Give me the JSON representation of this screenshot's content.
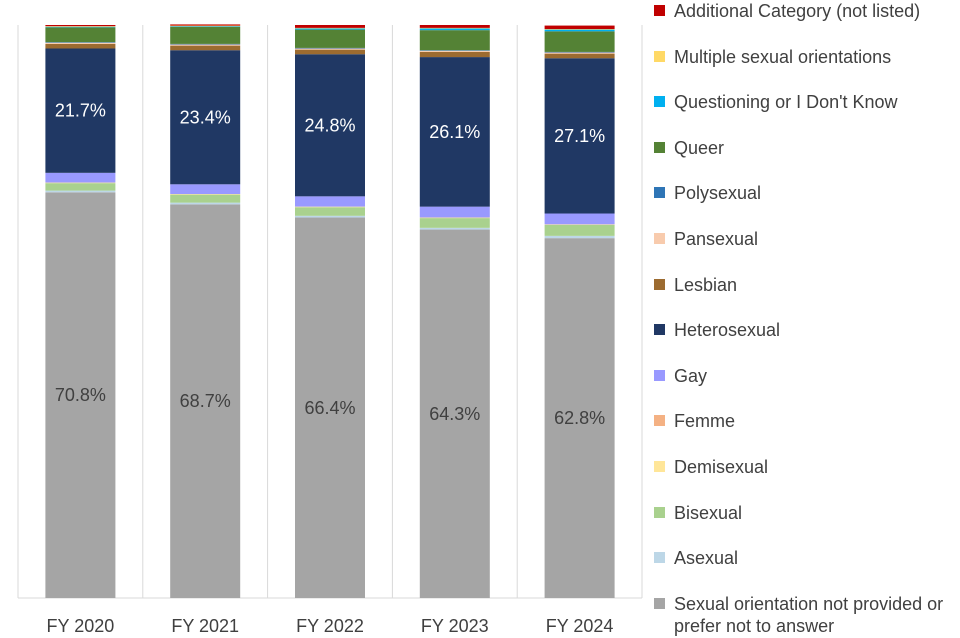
{
  "chart_data": {
    "type": "bar",
    "stacked": true,
    "title": "",
    "xlabel": "",
    "ylabel": "",
    "ylim": [
      0,
      100
    ],
    "categories": [
      "FY 2020",
      "FY 2021",
      "FY 2022",
      "FY 2023",
      "FY 2024"
    ],
    "series": [
      {
        "name": "Sexual orientation not provided or prefer not to answer",
        "color": "#a5a5a5",
        "values": [
          70.8,
          68.7,
          66.4,
          64.3,
          62.8
        ],
        "labels": [
          "70.8%",
          "68.7%",
          "66.4%",
          "64.3%",
          "62.8%"
        ]
      },
      {
        "name": "Asexual",
        "color": "#bdd7e7",
        "values": [
          0.3,
          0.3,
          0.3,
          0.3,
          0.4
        ]
      },
      {
        "name": "Bisexual",
        "color": "#a9d18e",
        "values": [
          1.3,
          1.4,
          1.5,
          1.7,
          1.9
        ]
      },
      {
        "name": "Demisexual",
        "color": "#ffe699",
        "values": [
          0.1,
          0.1,
          0.1,
          0.1,
          0.1
        ]
      },
      {
        "name": "Femme",
        "color": "#f4b183",
        "values": [
          0.0,
          0.0,
          0.0,
          0.0,
          0.0
        ]
      },
      {
        "name": "Gay",
        "color": "#9999ff",
        "values": [
          1.7,
          1.7,
          1.8,
          1.9,
          1.9
        ]
      },
      {
        "name": "Heterosexual",
        "color": "#203864",
        "values": [
          21.7,
          23.4,
          24.8,
          26.1,
          27.1
        ],
        "labels": [
          "21.7%",
          "23.4%",
          "24.8%",
          "26.1%",
          "27.1%"
        ]
      },
      {
        "name": "Lesbian",
        "color": "#9c6b30",
        "values": [
          0.8,
          0.8,
          0.8,
          0.9,
          0.8
        ]
      },
      {
        "name": "Pansexual",
        "color": "#f8cbad",
        "values": [
          0.2,
          0.2,
          0.2,
          0.2,
          0.2
        ]
      },
      {
        "name": "Polysexual",
        "color": "#2e75b6",
        "values": [
          0.1,
          0.1,
          0.1,
          0.1,
          0.1
        ]
      },
      {
        "name": "Queer",
        "color": "#548235",
        "values": [
          2.6,
          3.0,
          3.2,
          3.5,
          3.6
        ]
      },
      {
        "name": "Questioning or I Don't Know",
        "color": "#00b0f0",
        "values": [
          0.1,
          0.1,
          0.2,
          0.3,
          0.3
        ]
      },
      {
        "name": "Multiple sexual orientations",
        "color": "#ffd966",
        "values": [
          0.1,
          0.1,
          0.1,
          0.1,
          0.1
        ]
      },
      {
        "name": "Additional Category (not listed)",
        "color": "#c00000",
        "values": [
          0.2,
          0.2,
          0.5,
          0.5,
          0.6
        ]
      }
    ],
    "grid": false,
    "legend": "right"
  }
}
